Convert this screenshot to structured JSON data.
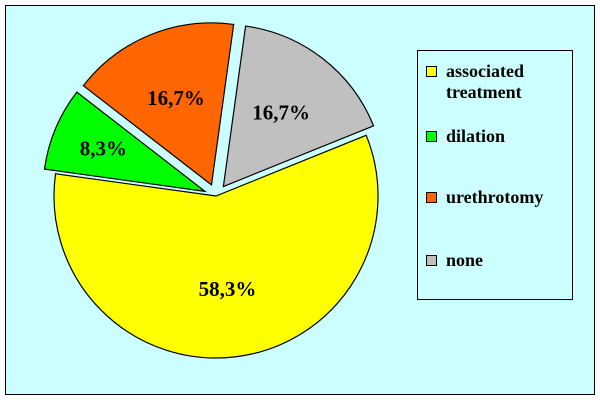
{
  "chart_data": {
    "type": "pie",
    "title": "",
    "slices": [
      {
        "name": "associated treatment",
        "value": 58.3,
        "label": "58,3%",
        "color": "#ffff00",
        "exploded": false
      },
      {
        "name": "dilation",
        "value": 8.3,
        "label": "8,3%",
        "color": "#00ff00",
        "exploded": true
      },
      {
        "name": "urethrotomy",
        "value": 16.7,
        "label": "16,7%",
        "color": "#ff6600",
        "exploded": true
      },
      {
        "name": "none",
        "value": 16.7,
        "label": "16,7%",
        "color": "#c0c0c0",
        "exploded": true
      }
    ],
    "legend": {
      "position": "right",
      "entries": [
        "associated treatment",
        "dilation",
        "urethrotomy",
        "none"
      ]
    },
    "background_color": "#ccffff"
  }
}
